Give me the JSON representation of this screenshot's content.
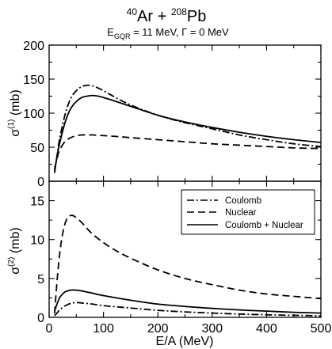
{
  "figure": {
    "title": {
      "proj_mass": "40",
      "proj_sym": "Ar + ",
      "targ_mass": "208",
      "targ_sym": "Pb"
    },
    "subtitle": {
      "e_main": "E",
      "e_sub": "GQR",
      "rest": " = 11 MeV,  Γ = 0 MeV"
    },
    "xlabel": "E/A (MeV)"
  },
  "chart_data": [
    {
      "type": "line",
      "panel": "top",
      "ylabel": {
        "base": "σ",
        "sup": "(1)",
        "unit": " (mb)"
      },
      "xlim": [
        0,
        500
      ],
      "ylim": [
        0,
        200
      ],
      "xticks": [
        0,
        100,
        200,
        300,
        400,
        500
      ],
      "yticks": [
        0,
        50,
        100,
        150,
        200
      ],
      "series": [
        {
          "key": "coulomb",
          "dash": "dashdot",
          "x": [
            10,
            15,
            20,
            30,
            40,
            50,
            60,
            70,
            80,
            90,
            100,
            120,
            150,
            200,
            250,
            300,
            350,
            400,
            450,
            500
          ],
          "y": [
            12,
            40,
            65,
            100,
            122,
            133,
            139,
            141,
            140,
            137,
            133,
            124,
            112,
            97,
            86,
            77,
            68,
            61,
            55,
            51
          ]
        },
        {
          "key": "nuclear",
          "dash": "dashed",
          "x": [
            10,
            15,
            20,
            30,
            40,
            50,
            60,
            70,
            80,
            90,
            100,
            120,
            150,
            200,
            250,
            300,
            350,
            400,
            450,
            500
          ],
          "y": [
            18,
            35,
            47,
            59,
            64,
            67,
            68,
            68,
            68,
            67.5,
            67,
            66,
            64,
            61,
            58,
            55,
            53,
            51,
            49,
            48
          ]
        },
        {
          "key": "both",
          "dash": "solid",
          "x": [
            10,
            15,
            20,
            30,
            40,
            50,
            60,
            70,
            80,
            90,
            100,
            120,
            150,
            200,
            250,
            300,
            350,
            400,
            450,
            500
          ],
          "y": [
            15,
            38,
            58,
            88,
            107,
            117,
            123,
            125,
            126,
            125,
            123,
            118,
            110,
            97,
            87,
            79,
            72,
            66,
            61,
            57
          ]
        }
      ]
    },
    {
      "type": "line",
      "panel": "bottom",
      "ylabel": {
        "base": "σ",
        "sup": "(2)",
        "unit": " (mb)"
      },
      "xlim": [
        0,
        500
      ],
      "ylim": [
        0,
        17.5
      ],
      "xticks": [
        0,
        100,
        200,
        300,
        400,
        500
      ],
      "yticks": [
        0,
        5,
        10,
        15
      ],
      "legend": {
        "position": "top-right",
        "entries": [
          {
            "key": "coulomb",
            "label": "Coulomb",
            "dash": "dashdot"
          },
          {
            "key": "nuclear",
            "label": "Nuclear",
            "dash": "dashed"
          },
          {
            "key": "both",
            "label": "Coulomb + Nuclear",
            "dash": "solid"
          }
        ]
      },
      "series": [
        {
          "key": "coulomb",
          "dash": "dashdot",
          "x": [
            10,
            15,
            20,
            30,
            40,
            50,
            60,
            80,
            100,
            150,
            200,
            250,
            300,
            350,
            400,
            450,
            500
          ],
          "y": [
            0.2,
            0.6,
            1.0,
            1.5,
            1.8,
            1.9,
            1.85,
            1.7,
            1.5,
            1.2,
            0.9,
            0.7,
            0.55,
            0.42,
            0.33,
            0.26,
            0.2
          ]
        },
        {
          "key": "nuclear",
          "dash": "dashed",
          "x": [
            10,
            15,
            20,
            25,
            30,
            35,
            40,
            45,
            50,
            60,
            70,
            80,
            100,
            120,
            150,
            200,
            250,
            300,
            350,
            400,
            450,
            500
          ],
          "y": [
            0.5,
            5.0,
            8.5,
            10.8,
            12.2,
            12.9,
            13.1,
            13.05,
            12.8,
            12.2,
            11.4,
            10.7,
            9.6,
            8.7,
            7.6,
            6.1,
            5.0,
            4.2,
            3.5,
            3.0,
            2.7,
            2.4
          ]
        },
        {
          "key": "both",
          "dash": "solid",
          "x": [
            10,
            15,
            20,
            25,
            30,
            40,
            50,
            60,
            70,
            80,
            100,
            150,
            200,
            250,
            300,
            350,
            400,
            450,
            500
          ],
          "y": [
            0.8,
            1.8,
            2.6,
            3.0,
            3.3,
            3.5,
            3.5,
            3.4,
            3.25,
            3.1,
            2.8,
            2.2,
            1.7,
            1.4,
            1.15,
            0.95,
            0.8,
            0.65,
            0.55
          ]
        }
      ]
    }
  ]
}
